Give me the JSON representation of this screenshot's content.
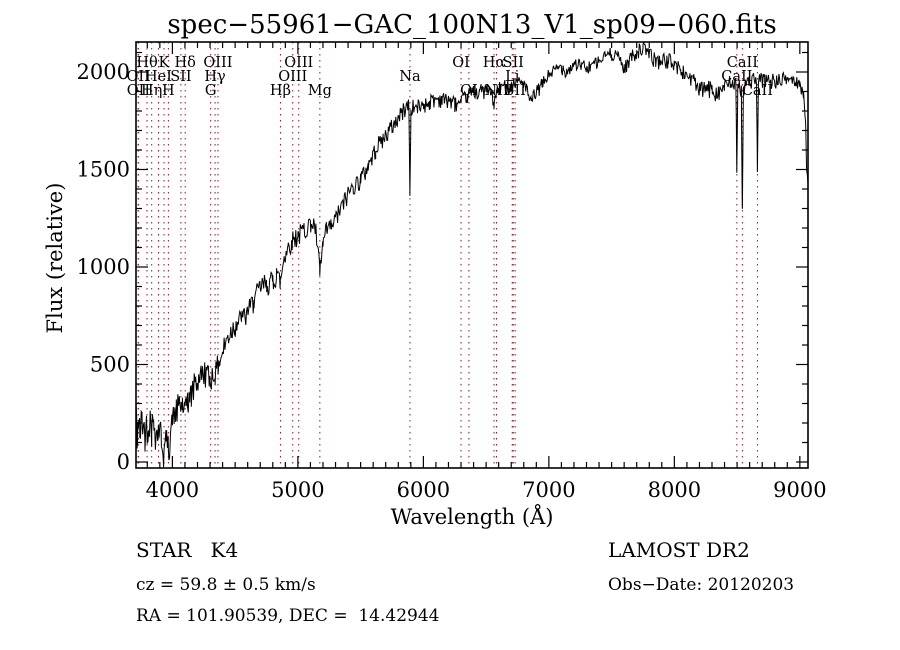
{
  "title": "spec−55961−GAC_100N13_V1_sp09−060.fits",
  "chart_data": {
    "type": "line",
    "title": "spec−55961−GAC_100N13_V1_sp09−060.fits",
    "xlabel": "Wavelength (Å)",
    "ylabel": "Flux (relative)",
    "x_range": [
      3710,
      9065
    ],
    "y_range": [
      -30,
      2154
    ],
    "x_ticks": [
      4000,
      5000,
      6000,
      7000,
      8000,
      9000
    ],
    "x_minor_tick_step": 100,
    "y_ticks": [
      0,
      500,
      1000,
      1500,
      2000
    ],
    "y_minor_tick_step": 100,
    "grid": false,
    "legend": "none",
    "line_color": "#000000",
    "marker_line_color": "#8B1A1A",
    "series": [
      {
        "name": "spectrum",
        "x": [
          3713,
          3718,
          3725,
          3740,
          3760,
          3780,
          3800,
          3820,
          3835,
          3850,
          3870,
          3889,
          3910,
          3933,
          3950,
          3968,
          3985,
          4000,
          4030,
          4060,
          4080,
          4102,
          4120,
          4150,
          4180,
          4220,
          4260,
          4300,
          4320,
          4340,
          4363,
          4400,
          4450,
          4500,
          4550,
          4600,
          4650,
          4700,
          4750,
          4800,
          4830,
          4861,
          4890,
          4920,
          4950,
          5000,
          5050,
          5100,
          5140,
          5175,
          5200,
          5230,
          5270,
          5320,
          5380,
          5440,
          5500,
          5560,
          5620,
          5680,
          5740,
          5800,
          5850,
          5885,
          5893,
          5901,
          5950,
          6000,
          6050,
          6100,
          6150,
          6200,
          6250,
          6300,
          6350,
          6400,
          6450,
          6500,
          6540,
          6563,
          6590,
          6650,
          6700,
          6750,
          6800,
          6860,
          6880,
          6950,
          7000,
          7050,
          7100,
          7150,
          7200,
          7250,
          7300,
          7350,
          7400,
          7450,
          7500,
          7550,
          7600,
          7650,
          7700,
          7750,
          7800,
          7850,
          7900,
          7950,
          8000,
          8050,
          8100,
          8150,
          8200,
          8250,
          8300,
          8350,
          8400,
          8450,
          8490,
          8498,
          8506,
          8534,
          8542,
          8550,
          8600,
          8654,
          8662,
          8670,
          8720,
          8780,
          8840,
          8900,
          8950,
          9000,
          9030,
          9045,
          9055,
          9064
        ],
        "y": [
          260,
          60,
          200,
          120,
          170,
          110,
          150,
          200,
          160,
          210,
          150,
          190,
          170,
          60,
          120,
          70,
          150,
          200,
          280,
          300,
          330,
          290,
          360,
          390,
          420,
          430,
          450,
          420,
          460,
          440,
          500,
          560,
          620,
          680,
          730,
          780,
          840,
          890,
          930,
          960,
          1000,
          950,
          1060,
          1100,
          1130,
          1160,
          1200,
          1230,
          1180,
          950,
          1100,
          1180,
          1220,
          1280,
          1350,
          1420,
          1480,
          1540,
          1600,
          1660,
          1720,
          1760,
          1790,
          1810,
          1360,
          1800,
          1820,
          1840,
          1850,
          1860,
          1870,
          1880,
          1860,
          1840,
          1880,
          1900,
          1910,
          1900,
          1880,
          1810,
          1890,
          1930,
          1940,
          1950,
          1940,
          1850,
          1900,
          1960,
          1990,
          2010,
          2030,
          2010,
          2040,
          2020,
          2010,
          2040,
          2060,
          2080,
          2090,
          2100,
          2040,
          2090,
          2110,
          2120,
          2100,
          2070,
          2050,
          2040,
          2030,
          2010,
          1990,
          1960,
          1900,
          1930,
          1940,
          1920,
          1930,
          1940,
          1950,
          1480,
          1940,
          1930,
          1300,
          1920,
          1950,
          1940,
          1480,
          1930,
          1950,
          1960,
          1950,
          1960,
          1970,
          1960,
          1900,
          1750,
          1500,
          1430
        ]
      }
    ],
    "noise_profile": {
      "x": [
        3713,
        4000,
        4500,
        5000,
        5500,
        6000,
        6500,
        7000,
        7500,
        8000,
        8300,
        8500,
        8700,
        9000,
        9064
      ],
      "amplitude": [
        85,
        70,
        55,
        48,
        42,
        36,
        34,
        30,
        30,
        36,
        42,
        40,
        38,
        30,
        25
      ]
    },
    "line_markers": [
      {
        "wavelength": 3727,
        "label": "OII",
        "row": 2
      },
      {
        "wavelength": 3729,
        "label": "OII",
        "row": 3
      },
      {
        "wavelength": 3798,
        "label": "Hθ",
        "row": 1
      },
      {
        "wavelength": 3835,
        "label": "Hη",
        "row": 3
      },
      {
        "wavelength": 3889,
        "label": "HeI",
        "row": 2
      },
      {
        "wavelength": 3933,
        "label": "K",
        "row": 1
      },
      {
        "wavelength": 3968,
        "label": "H",
        "row": 3
      },
      {
        "wavelength": 4068,
        "label": "SII",
        "row": 2
      },
      {
        "wavelength": 4102,
        "label": "Hδ",
        "row": 1
      },
      {
        "wavelength": 4305,
        "label": "G",
        "row": 3
      },
      {
        "wavelength": 4340,
        "label": "Hγ",
        "row": 2
      },
      {
        "wavelength": 4363,
        "label": "OIII",
        "row": 1
      },
      {
        "wavelength": 4861,
        "label": "Hβ",
        "row": 3
      },
      {
        "wavelength": 4959,
        "label": "OIII",
        "row": 2
      },
      {
        "wavelength": 5007,
        "label": "OIII",
        "row": 1
      },
      {
        "wavelength": 5175,
        "label": "Mg",
        "row": 3
      },
      {
        "wavelength": 5893,
        "label": "Na",
        "row": 2
      },
      {
        "wavelength": 6300,
        "label": "OI",
        "row": 1
      },
      {
        "wavelength": 6363,
        "label": "OI",
        "row": 3
      },
      {
        "wavelength": 6563,
        "label": "Hα",
        "row": 1
      },
      {
        "wavelength": 6583,
        "label": "NII",
        "row": 3
      },
      {
        "wavelength": 6708,
        "label": "Li",
        "row": 2
      },
      {
        "wavelength": 6716,
        "label": "SII",
        "row": 1
      },
      {
        "wavelength": 6731,
        "label": "SII",
        "row": 3
      },
      {
        "wavelength": 8498,
        "label": "CaII",
        "row": 2
      },
      {
        "wavelength": 8542,
        "label": "CaII",
        "row": 1
      },
      {
        "wavelength": 8662,
        "label": "CaII",
        "row": 3
      }
    ]
  },
  "annotations": {
    "star_class": "STAR   K4",
    "cz": "cz = 59.8 ± 0.5 km/s",
    "radec": "RA = 101.90539, DEC =  14.42944",
    "survey": "LAMOST DR2",
    "obs_date": "Obs−Date: 20120203"
  }
}
